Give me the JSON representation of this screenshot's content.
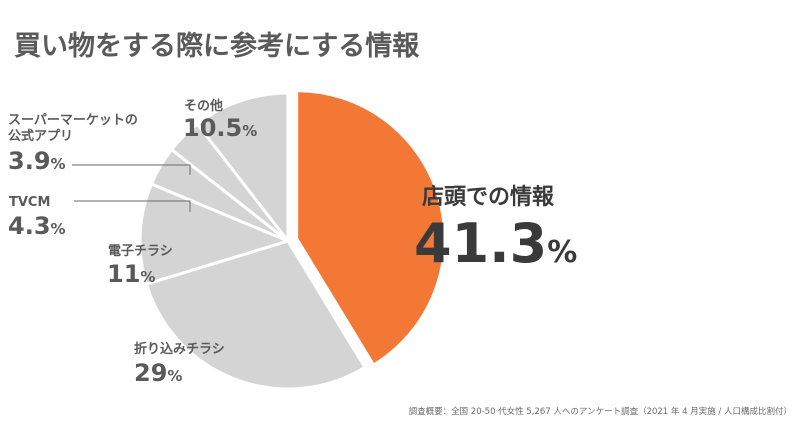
{
  "chart_data": {
    "type": "pie",
    "title": "買い物をする際に参考にする情報",
    "unit": "%",
    "slices": [
      {
        "label": "店頭での情報",
        "value": 41.3,
        "value_text": "41.3",
        "color": "#f47835"
      },
      {
        "label": "折り込みチラシ",
        "value": 29,
        "value_text": "29",
        "color": "#d4d4d4"
      },
      {
        "label": "電子チラシ",
        "value": 11,
        "value_text": "11",
        "color": "#d4d4d4"
      },
      {
        "label": "TVCM",
        "value": 4.3,
        "value_text": "4.3",
        "color": "#d4d4d4"
      },
      {
        "label": "スーパーマーケットの\n公式アプリ",
        "value": 3.9,
        "value_text": "3.9",
        "color": "#d4d4d4"
      },
      {
        "label": "その他",
        "value": 10.5,
        "value_text": "10.5",
        "color": "#d4d4d4"
      }
    ],
    "note": "調査概要：全国 20-50 代女性 5,267 人へのアンケート調査（2021 年 4 月実施 / 人口構成比割付）"
  }
}
